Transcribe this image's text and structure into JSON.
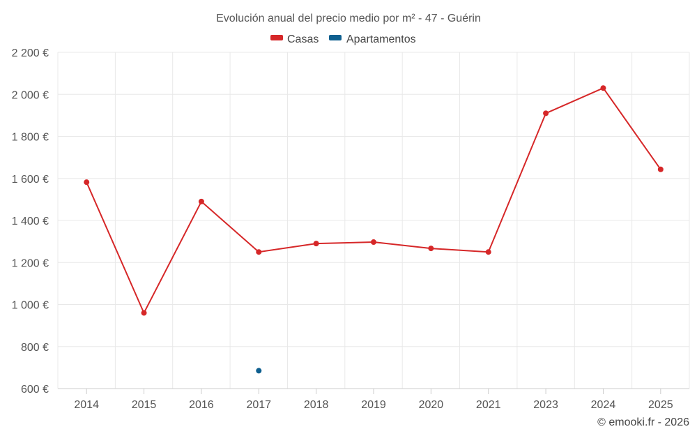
{
  "chart_data": {
    "type": "line",
    "title": "Evolución anual del precio medio por m² - 47 - Guérin",
    "xlabel": "",
    "ylabel": "",
    "categories": [
      "2014",
      "2015",
      "2016",
      "2017",
      "2018",
      "2019",
      "2020",
      "2021",
      "2023",
      "2024",
      "2025"
    ],
    "ylim": [
      600,
      2200
    ],
    "y_ticks": [
      600,
      800,
      1000,
      1200,
      1400,
      1600,
      1800,
      2000,
      2200
    ],
    "y_tick_labels": [
      "600 €",
      "800 €",
      "1 000 €",
      "1 200 €",
      "1 400 €",
      "1 600 €",
      "1 800 €",
      "2 000 €",
      "2 200 €"
    ],
    "grid": true,
    "legend_position": "top-center",
    "series": [
      {
        "name": "Casas",
        "color": "#d62728",
        "values": [
          1582,
          960,
          1490,
          1250,
          1290,
          1297,
          1267,
          1250,
          1910,
          2030,
          1643
        ]
      },
      {
        "name": "Apartamentos",
        "color": "#0e5f8f",
        "values": [
          null,
          null,
          null,
          685,
          null,
          null,
          null,
          null,
          null,
          null,
          null
        ]
      }
    ],
    "credit": "© emooki.fr - 2026"
  }
}
